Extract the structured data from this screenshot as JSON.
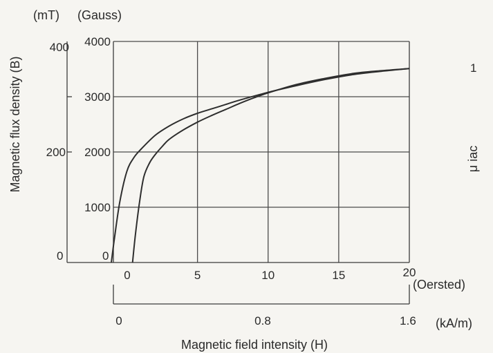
{
  "chart_data": {
    "type": "line",
    "xlabel": "Magnetic field intensity (H)",
    "ylabel": "Magnetic flux density (B)",
    "y2label": "μ iac",
    "y_units": [
      "(mT)",
      "(Gauss)"
    ],
    "x_units": [
      "(Oersted)",
      "(kA/m)"
    ],
    "x_oersted": {
      "ticks": [
        0,
        5,
        10,
        15,
        20
      ],
      "range": [
        -2,
        20
      ]
    },
    "x_kam": {
      "ticks": [
        "0",
        "0.8",
        "1.6"
      ]
    },
    "y_gauss": {
      "ticks": [
        1000,
        2000,
        3000,
        4000
      ],
      "zero_label": "0",
      "range": [
        0,
        4000
      ]
    },
    "y_mt": {
      "ticks": [
        "200",
        "400"
      ],
      "zero_label": "0"
    },
    "right_axis_ticks": [
      "1"
    ],
    "grid": true,
    "series": [
      {
        "x": [
          -1.1,
          -0.9,
          -0.5,
          0,
          0.5,
          1,
          2,
          3,
          4,
          5,
          6,
          7,
          8,
          10,
          12,
          14,
          16,
          18,
          20
        ],
        "y": [
          0,
          400,
          1100,
          1650,
          1900,
          2050,
          2300,
          2470,
          2600,
          2700,
          2780,
          2860,
          2940,
          3080,
          3200,
          3310,
          3400,
          3460,
          3510
        ]
      },
      {
        "x": [
          0.4,
          0.6,
          0.9,
          1.2,
          1.6,
          2,
          2.5,
          3,
          4,
          5,
          6,
          7,
          8,
          9,
          10,
          12,
          14,
          16,
          18,
          20
        ],
        "y": [
          0,
          500,
          1100,
          1550,
          1800,
          1950,
          2100,
          2230,
          2400,
          2540,
          2660,
          2770,
          2880,
          2980,
          3070,
          3220,
          3330,
          3420,
          3470,
          3510
        ]
      }
    ]
  }
}
